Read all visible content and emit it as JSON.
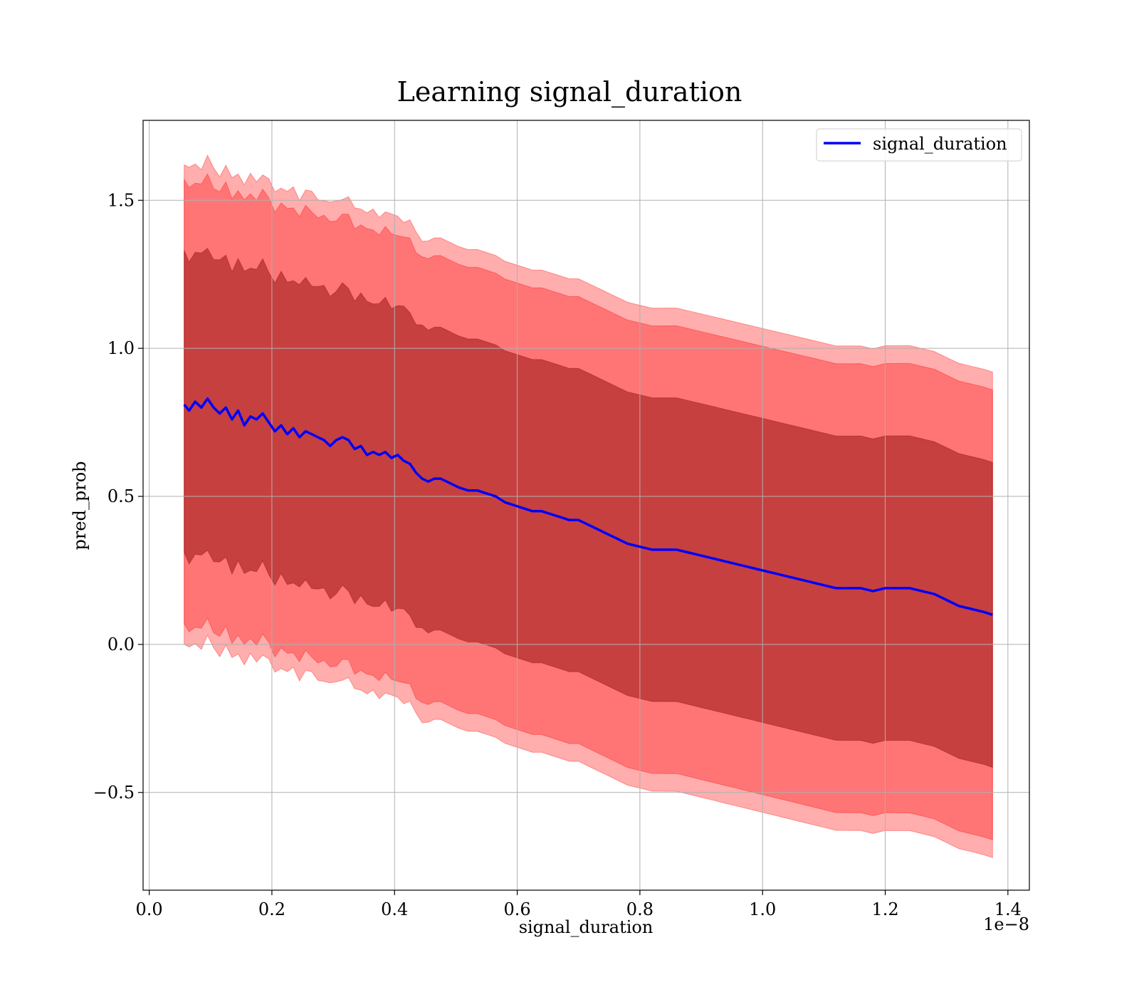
{
  "chart_data": {
    "type": "line",
    "title": "Learning signal_duration",
    "xlabel": "signal_duration",
    "ylabel": "pred_prob",
    "x_offset_text": "1e−8",
    "x_ticks": [
      0.0,
      0.2,
      0.4,
      0.6,
      0.8,
      1.0,
      1.2,
      1.4
    ],
    "x_tick_labels": [
      "0.0",
      "0.2",
      "0.4",
      "0.6",
      "0.8",
      "1.0",
      "1.2",
      "1.4"
    ],
    "y_ticks": [
      -0.5,
      0.0,
      0.5,
      1.0,
      1.5
    ],
    "y_tick_labels": [
      "−0.5",
      "0.0",
      "0.5",
      "1.0",
      "1.5"
    ],
    "xlim": [
      -0.01,
      1.435
    ],
    "ylim": [
      -0.83,
      1.77
    ],
    "x_scale_note": "x values are in units of 1e-8",
    "grid": true,
    "legend_position": "top-right",
    "colors": {
      "line": "#0000ff",
      "outer_band": "#ff0000",
      "inner_band": "#800000",
      "grid": "#b0b0b0"
    },
    "series": [
      {
        "name": "signal_duration",
        "x": [
          0.057,
          0.065,
          0.075,
          0.085,
          0.095,
          0.105,
          0.115,
          0.125,
          0.135,
          0.145,
          0.155,
          0.165,
          0.175,
          0.185,
          0.195,
          0.205,
          0.215,
          0.225,
          0.235,
          0.245,
          0.255,
          0.265,
          0.275,
          0.285,
          0.295,
          0.305,
          0.315,
          0.325,
          0.335,
          0.345,
          0.355,
          0.365,
          0.375,
          0.385,
          0.395,
          0.405,
          0.415,
          0.425,
          0.435,
          0.445,
          0.455,
          0.465,
          0.475,
          0.485,
          0.495,
          0.505,
          0.52,
          0.535,
          0.55,
          0.565,
          0.58,
          0.595,
          0.61,
          0.625,
          0.64,
          0.655,
          0.67,
          0.685,
          0.7,
          0.72,
          0.74,
          0.76,
          0.78,
          0.8,
          0.82,
          0.84,
          0.86,
          0.88,
          0.9,
          0.92,
          0.94,
          0.96,
          0.98,
          1.0,
          1.02,
          1.04,
          1.06,
          1.08,
          1.1,
          1.12,
          1.14,
          1.16,
          1.18,
          1.2,
          1.22,
          1.24,
          1.26,
          1.28,
          1.3,
          1.32,
          1.34,
          1.36,
          1.375
        ],
        "y": [
          0.81,
          0.79,
          0.82,
          0.8,
          0.83,
          0.8,
          0.78,
          0.8,
          0.76,
          0.79,
          0.74,
          0.77,
          0.76,
          0.78,
          0.75,
          0.72,
          0.74,
          0.71,
          0.73,
          0.7,
          0.72,
          0.71,
          0.7,
          0.69,
          0.67,
          0.69,
          0.7,
          0.69,
          0.66,
          0.67,
          0.64,
          0.65,
          0.64,
          0.65,
          0.63,
          0.64,
          0.62,
          0.61,
          0.58,
          0.56,
          0.55,
          0.56,
          0.56,
          0.55,
          0.54,
          0.53,
          0.52,
          0.52,
          0.51,
          0.5,
          0.48,
          0.47,
          0.46,
          0.45,
          0.45,
          0.44,
          0.43,
          0.42,
          0.42,
          0.4,
          0.38,
          0.36,
          0.34,
          0.33,
          0.32,
          0.32,
          0.32,
          0.31,
          0.3,
          0.29,
          0.28,
          0.27,
          0.26,
          0.25,
          0.24,
          0.23,
          0.22,
          0.21,
          0.2,
          0.19,
          0.19,
          0.19,
          0.18,
          0.19,
          0.19,
          0.19,
          0.18,
          0.17,
          0.15,
          0.13,
          0.12,
          0.11,
          0.1
        ]
      }
    ],
    "bands": [
      {
        "description": "outer band (mean ± larger spread)",
        "half_width_start": 0.81,
        "half_width_end": 0.82
      },
      {
        "description": "middle band",
        "half_width_start": 0.75,
        "half_width_end": 0.76
      },
      {
        "description": "inner band",
        "half_width_start": 0.51,
        "half_width_end": 0.515
      }
    ]
  }
}
